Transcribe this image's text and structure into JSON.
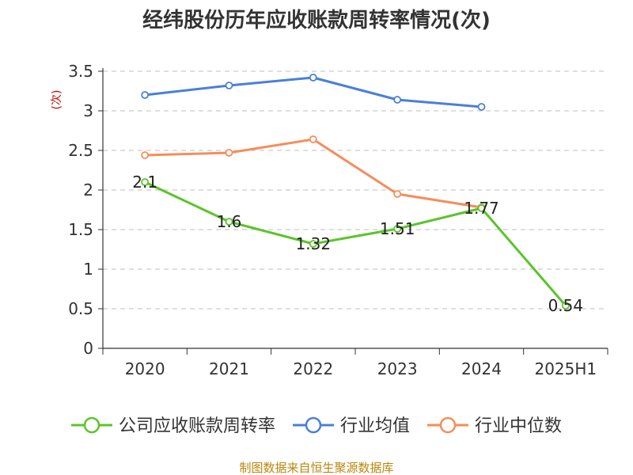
{
  "chart_data": {
    "type": "line",
    "title": "经纬股份历年应收账款周转率情况(次)",
    "ylabel": "(次)",
    "xlabel": "",
    "categories": [
      "2020",
      "2021",
      "2022",
      "2023",
      "2024",
      "2025H1"
    ],
    "y_ticks": [
      "0",
      "0.5",
      "1",
      "1.5",
      "2",
      "2.5",
      "3",
      "3.5"
    ],
    "ylim": [
      0,
      3.5
    ],
    "grid": true,
    "legend_position": "bottom",
    "series": [
      {
        "name": "公司应收账款周转率",
        "color": "#5bc42b",
        "values": [
          2.1,
          1.6,
          1.32,
          1.51,
          1.77,
          0.54
        ],
        "labels": [
          "2.1",
          "1.6",
          "1.32",
          "1.51",
          "1.77",
          "0.54"
        ]
      },
      {
        "name": "行业均值",
        "color": "#4a7fd9",
        "values": [
          3.2,
          3.32,
          3.42,
          3.14,
          3.05,
          null
        ]
      },
      {
        "name": "行业中位数",
        "color": "#f58d5a",
        "values": [
          2.44,
          2.47,
          2.64,
          1.95,
          1.78,
          null
        ]
      }
    ],
    "source": "制图数据来自恒生聚源数据库"
  }
}
